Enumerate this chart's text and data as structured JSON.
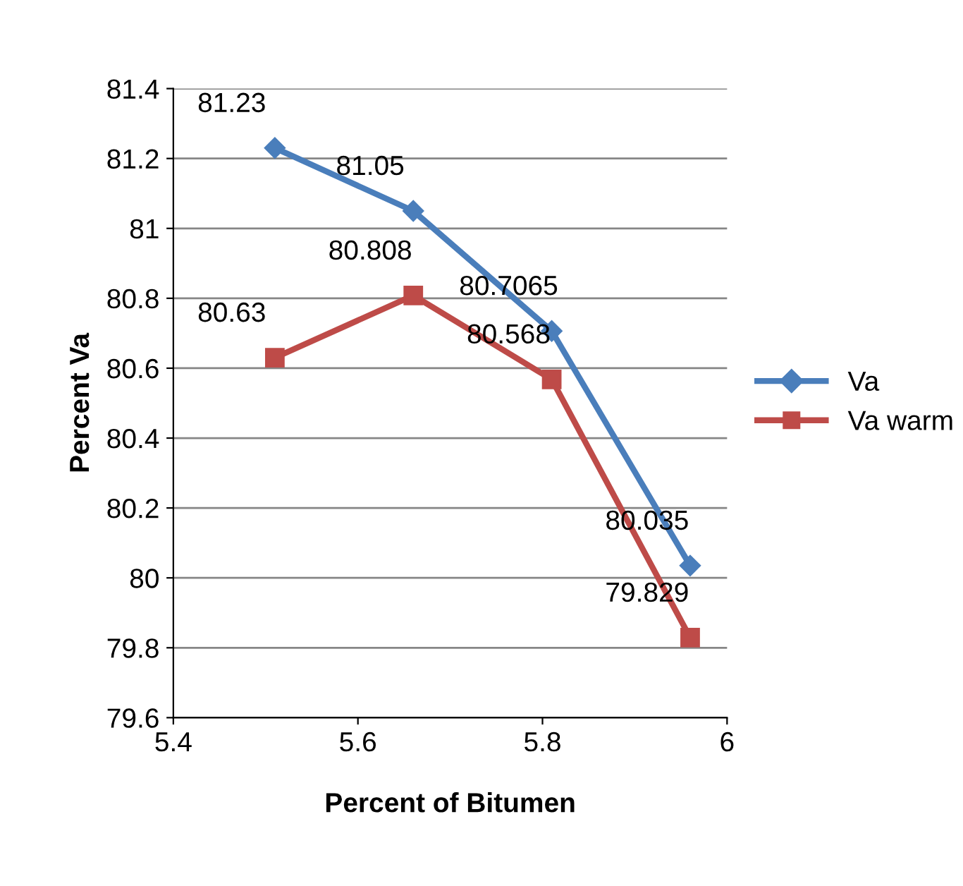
{
  "chart_data": {
    "type": "line",
    "xlabel": "Percent of Bitumen",
    "ylabel": "Percent Va",
    "x": [
      5.51,
      5.66,
      5.81,
      5.96
    ],
    "series": [
      {
        "name": "Va",
        "color": "#4a7ebb",
        "values": [
          81.23,
          81.05,
          80.7065,
          80.035
        ],
        "marker": "diamond"
      },
      {
        "name": "Va warm",
        "color": "#be4b48",
        "values": [
          80.63,
          80.808,
          80.568,
          79.829
        ],
        "marker": "square"
      }
    ],
    "xlim": [
      5.4,
      6
    ],
    "xticks": [
      5.4,
      5.6,
      5.8,
      6
    ],
    "ylim": [
      79.6,
      81.4
    ],
    "yticks": [
      79.6,
      79.8,
      80,
      80.2,
      80.4,
      80.6,
      80.8,
      81,
      81.2,
      81.4
    ],
    "grid": "y",
    "legend": "right",
    "data_labels": true,
    "line_style": "solid"
  }
}
